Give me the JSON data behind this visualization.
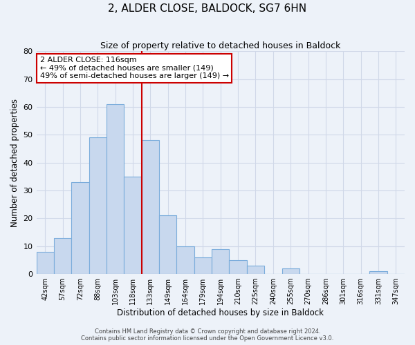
{
  "title": "2, ALDER CLOSE, BALDOCK, SG7 6HN",
  "subtitle": "Size of property relative to detached houses in Baldock",
  "xlabel": "Distribution of detached houses by size in Baldock",
  "ylabel": "Number of detached properties",
  "bar_labels": [
    "42sqm",
    "57sqm",
    "72sqm",
    "88sqm",
    "103sqm",
    "118sqm",
    "133sqm",
    "149sqm",
    "164sqm",
    "179sqm",
    "194sqm",
    "210sqm",
    "225sqm",
    "240sqm",
    "255sqm",
    "270sqm",
    "286sqm",
    "301sqm",
    "316sqm",
    "331sqm",
    "347sqm"
  ],
  "bar_values": [
    8,
    13,
    33,
    49,
    61,
    35,
    48,
    21,
    10,
    6,
    9,
    5,
    3,
    0,
    2,
    0,
    0,
    0,
    0,
    1,
    0
  ],
  "bar_color": "#c8d8ee",
  "bar_edge_color": "#7aacdb",
  "vline_x": 5.5,
  "vline_color": "#cc0000",
  "annotation_title": "2 ALDER CLOSE: 116sqm",
  "annotation_line1": "← 49% of detached houses are smaller (149)",
  "annotation_line2": "49% of semi-detached houses are larger (149) →",
  "annotation_box_color": "#ffffff",
  "annotation_box_edge": "#cc0000",
  "ylim": [
    0,
    80
  ],
  "yticks": [
    0,
    10,
    20,
    30,
    40,
    50,
    60,
    70,
    80
  ],
  "grid_color": "#d0d8e8",
  "bg_color": "#edf2f9",
  "footer1": "Contains HM Land Registry data © Crown copyright and database right 2024.",
  "footer2": "Contains public sector information licensed under the Open Government Licence v3.0."
}
